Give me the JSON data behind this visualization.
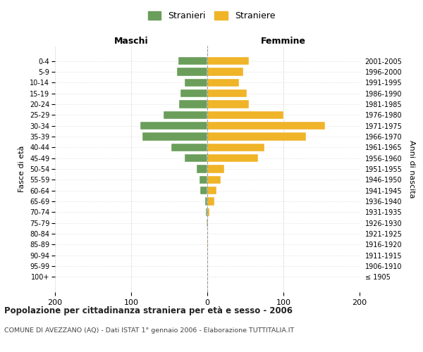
{
  "age_groups": [
    "100+",
    "95-99",
    "90-94",
    "85-89",
    "80-84",
    "75-79",
    "70-74",
    "65-69",
    "60-64",
    "55-59",
    "50-54",
    "45-49",
    "40-44",
    "35-39",
    "30-34",
    "25-29",
    "20-24",
    "15-19",
    "10-14",
    "5-9",
    "0-4"
  ],
  "birth_years": [
    "≤ 1905",
    "1906-1910",
    "1911-1915",
    "1916-1920",
    "1921-1925",
    "1926-1930",
    "1931-1935",
    "1936-1940",
    "1941-1945",
    "1946-1950",
    "1951-1955",
    "1956-1960",
    "1961-1965",
    "1966-1970",
    "1971-1975",
    "1976-1980",
    "1981-1985",
    "1986-1990",
    "1991-1995",
    "1996-2000",
    "2001-2005"
  ],
  "maschi": [
    0,
    0,
    0,
    0,
    0,
    1,
    2,
    3,
    9,
    10,
    14,
    30,
    47,
    85,
    88,
    57,
    37,
    35,
    30,
    40,
    38
  ],
  "femmine": [
    0,
    0,
    0,
    1,
    0,
    1,
    3,
    9,
    12,
    18,
    22,
    67,
    75,
    130,
    155,
    100,
    55,
    52,
    42,
    47,
    55
  ],
  "maschi_color": "#6a9e5a",
  "femmine_color": "#f0b429",
  "background_color": "#ffffff",
  "grid_color": "#d0d0d0",
  "title": "Popolazione per cittadinanza straniera per età e sesso - 2006",
  "subtitle": "COMUNE DI AVEZZANO (AQ) - Dati ISTAT 1° gennaio 2006 - Elaborazione TUTTITALIA.IT",
  "xlabel_maschi": "Maschi",
  "xlabel_femmine": "Femmine",
  "ylabel_left": "Fasce di età",
  "ylabel_right": "Anni di nascita",
  "legend_maschi": "Stranieri",
  "legend_femmine": "Straniere",
  "xlim": 200
}
